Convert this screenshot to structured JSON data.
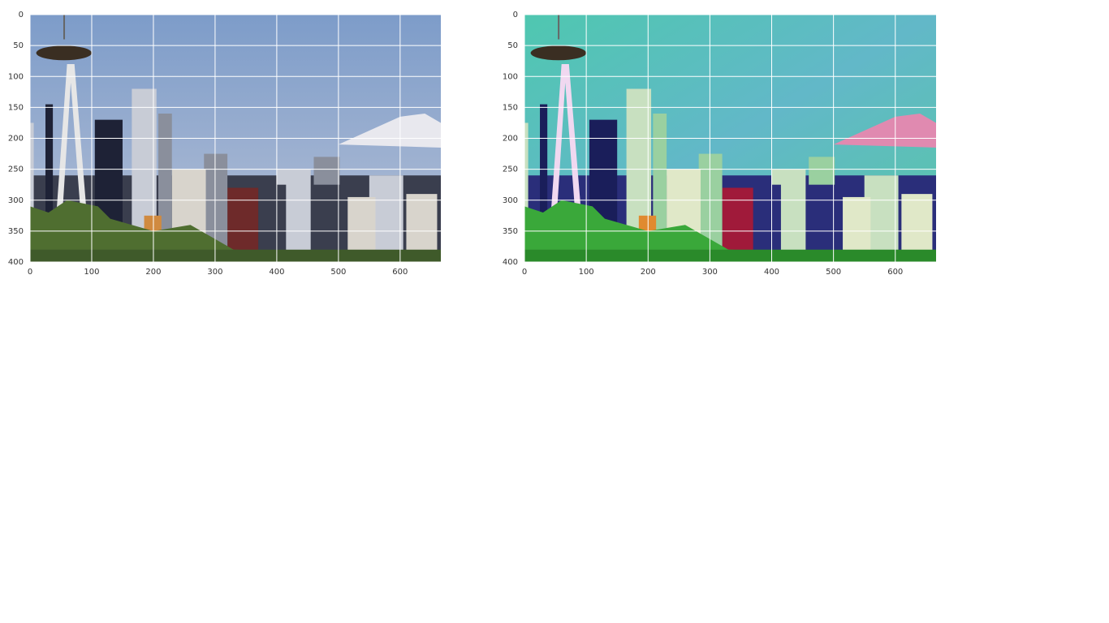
{
  "chart_data": [
    {
      "type": "image",
      "xlim": [
        0,
        666
      ],
      "ylim": [
        400,
        0
      ],
      "xticks": [
        0,
        100,
        200,
        300,
        400,
        500,
        600
      ],
      "yticks": [
        0,
        50,
        100,
        150,
        200,
        250,
        300,
        350,
        400
      ],
      "grid": true
    },
    {
      "type": "image",
      "xlim": [
        0,
        666
      ],
      "ylim": [
        400,
        0
      ],
      "xticks": [
        0,
        100,
        200,
        300,
        400,
        500,
        600
      ],
      "yticks": [
        0,
        50,
        100,
        150,
        200,
        250,
        300,
        350,
        400
      ],
      "grid": true
    }
  ]
}
